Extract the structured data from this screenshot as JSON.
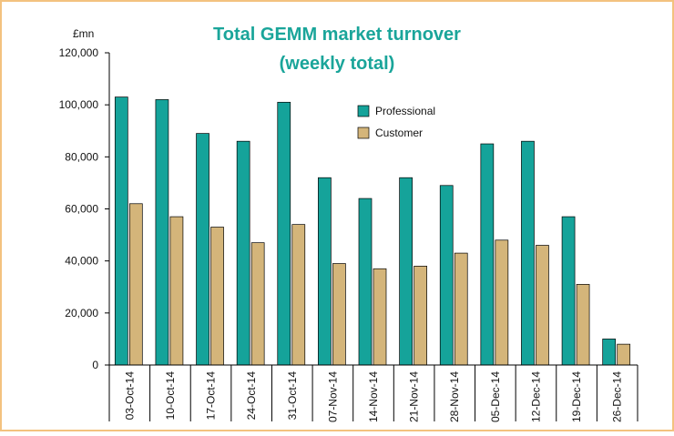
{
  "chart_data": {
    "type": "bar",
    "title": [
      "Total GEMM market turnover",
      "(weekly total)"
    ],
    "y_axis_label": "£mn",
    "categories": [
      "03-Oct-14",
      "10-Oct-14",
      "17-Oct-14",
      "24-Oct-14",
      "31-Oct-14",
      "07-Nov-14",
      "14-Nov-14",
      "21-Nov-14",
      "28-Nov-14",
      "05-Dec-14",
      "12-Dec-14",
      "19-Dec-14",
      "26-Dec-14"
    ],
    "series": [
      {
        "name": "Professional",
        "color": "#15a39a",
        "values": [
          103000,
          102000,
          89000,
          86000,
          101000,
          72000,
          64000,
          72000,
          69000,
          85000,
          86000,
          57000,
          10000
        ]
      },
      {
        "name": "Customer",
        "color": "#d4b57a",
        "values": [
          62000,
          57000,
          53000,
          47000,
          54000,
          39000,
          37000,
          38000,
          43000,
          48000,
          46000,
          31000,
          8000
        ]
      }
    ],
    "ylim": [
      0,
      120000
    ],
    "yticks": [
      0,
      {
        "value": 20000,
        "label": "20,000"
      },
      {
        "value": 40000,
        "label": "40,000"
      },
      {
        "value": 60000,
        "label": "60,000"
      },
      {
        "value": 80000,
        "label": "80,000"
      },
      {
        "value": 100000,
        "label": "100,000"
      },
      {
        "value": 120000,
        "label": "120,000"
      }
    ],
    "grid": false,
    "legend": "upper right"
  }
}
